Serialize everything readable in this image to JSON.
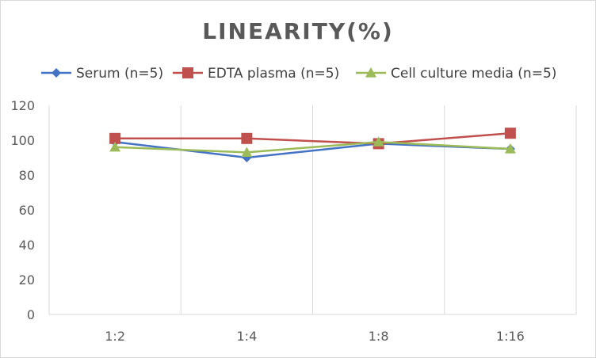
{
  "chart_data": {
    "type": "line",
    "title": "LINEARITY(%)",
    "xlabel": "",
    "ylabel": "",
    "categories": [
      "1:2",
      "1:4",
      "1:8",
      "1:16"
    ],
    "ylim": [
      0,
      120
    ],
    "yticks": [
      0,
      20,
      40,
      60,
      80,
      100,
      120
    ],
    "grid": "vertical",
    "legend_position": "top",
    "series": [
      {
        "name": "Serum (n=5)",
        "values": [
          99,
          90,
          98,
          95
        ],
        "color": "#4472c4",
        "marker": "diamond"
      },
      {
        "name": "EDTA plasma (n=5)",
        "values": [
          101,
          101,
          98,
          104
        ],
        "color": "#c0504d",
        "marker": "square"
      },
      {
        "name": "Cell culture media (n=5)",
        "values": [
          96,
          93,
          99,
          95
        ],
        "color": "#9bbb59",
        "marker": "triangle"
      }
    ]
  }
}
